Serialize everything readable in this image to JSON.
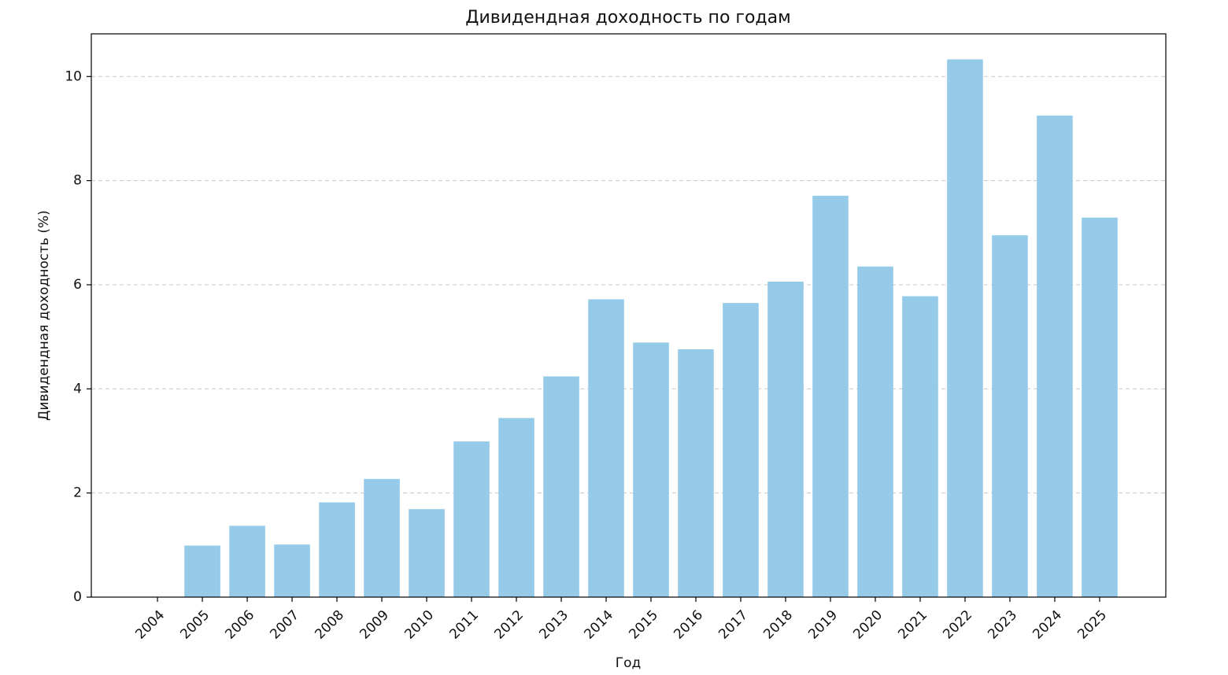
{
  "chart_data": {
    "type": "bar",
    "title": "Дивидендная доходность по годам",
    "x_label": "Год",
    "y_label": "Дивидендная доходность (%)",
    "categories": [
      "2004",
      "2005",
      "2006",
      "2007",
      "2008",
      "2009",
      "2010",
      "2011",
      "2012",
      "2013",
      "2014",
      "2015",
      "2016",
      "2017",
      "2018",
      "2019",
      "2020",
      "2021",
      "2022",
      "2023",
      "2024",
      "2025"
    ],
    "values": [
      0,
      0.99,
      1.37,
      1.01,
      1.82,
      2.27,
      1.69,
      2.99,
      3.44,
      4.24,
      5.72,
      4.89,
      4.76,
      5.65,
      6.06,
      7.71,
      6.35,
      5.78,
      10.33,
      6.95,
      9.25,
      7.29
    ],
    "color": "#95cbe8",
    "ylim": [
      0,
      10.82
    ],
    "yticks": [
      0,
      2,
      4,
      6,
      8,
      10
    ],
    "grid": true
  }
}
